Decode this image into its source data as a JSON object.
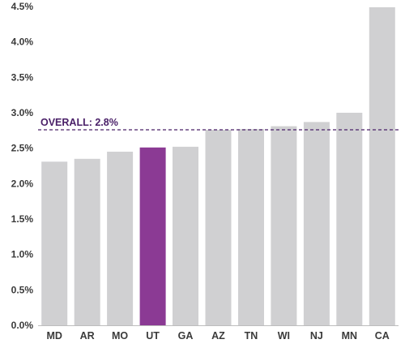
{
  "chart_data": {
    "type": "bar",
    "categories": [
      "MD",
      "AR",
      "MO",
      "UT",
      "GA",
      "AZ",
      "TN",
      "WI",
      "NJ",
      "MN",
      "CA"
    ],
    "values": [
      2.31,
      2.35,
      2.45,
      2.51,
      2.52,
      2.76,
      2.77,
      2.81,
      2.87,
      3.0,
      4.49
    ],
    "highlight_category": "UT",
    "ylim": [
      0,
      4.5
    ],
    "ytick_values": [
      0,
      0.5,
      1.0,
      1.5,
      2.0,
      2.5,
      3.0,
      3.5,
      4.0,
      4.5
    ],
    "ytick_labels": [
      "0.0%",
      "0.5%",
      "1.0%",
      "1.5%",
      "2.0%",
      "2.5%",
      "3.0%",
      "3.5%",
      "4.0%",
      "4.5%"
    ],
    "reference_line": {
      "value": 2.76,
      "label": "OVERALL: 2.8%"
    },
    "title": "",
    "xlabel": "",
    "ylabel": "",
    "grid": false,
    "legend": "none",
    "colors": {
      "bar": "#d0d0d2",
      "highlight": "#8b3a94",
      "reference": "#4a2068",
      "text": "#3a3a3a",
      "axis": "#bdbdbd"
    }
  }
}
